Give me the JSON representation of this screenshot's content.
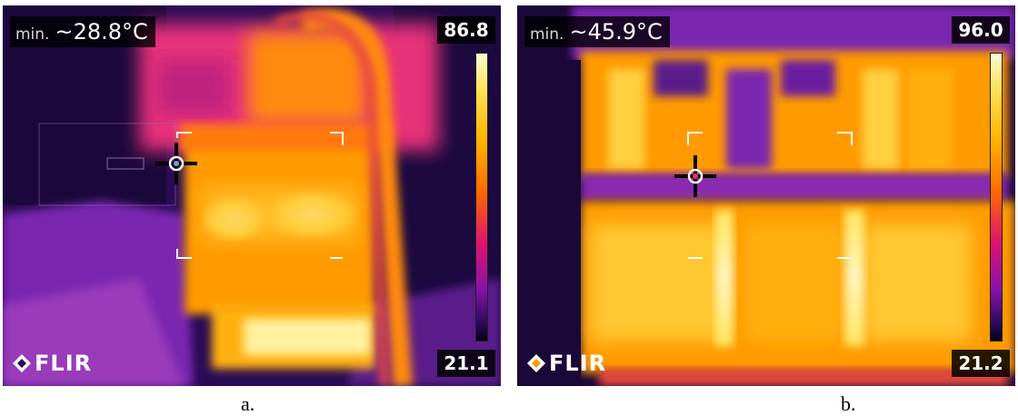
{
  "panels": [
    {
      "min_label": "min.",
      "min_value": "~28.8°C",
      "max_value": "86.8",
      "low_value": "21.1",
      "brand": "FLIR",
      "caption": "a."
    },
    {
      "min_label": "min.",
      "min_value": "~45.9°C",
      "max_value": "96.0",
      "low_value": "21.2",
      "brand": "FLIR",
      "caption": "b."
    }
  ],
  "palette": {
    "cold": "#1a0a3a",
    "cool": "#6a1aa0",
    "mid": "#e8307a",
    "warm": "#ff9a00",
    "hot": "#ffe860",
    "hottest": "#fffbe0"
  }
}
